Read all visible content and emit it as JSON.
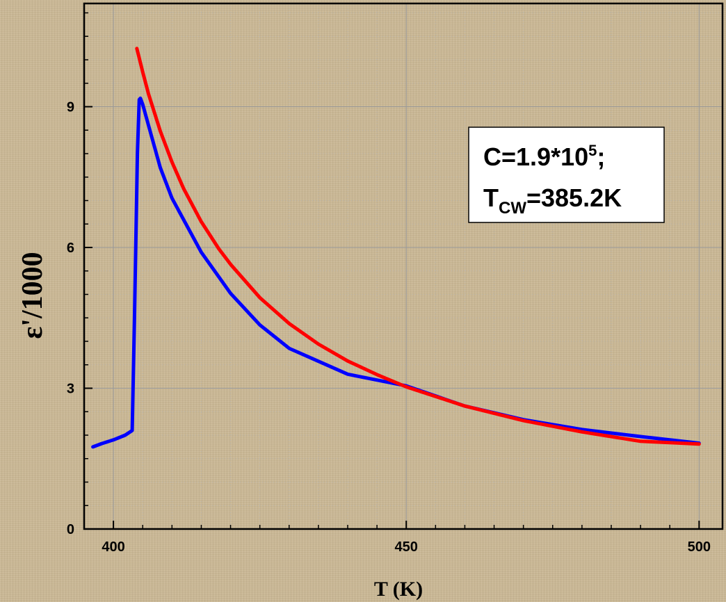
{
  "chart_data": {
    "type": "line",
    "xlabel": "T (K)",
    "ylabel": "ε'/1000",
    "xlim": [
      395,
      504
    ],
    "ylim": [
      0,
      11.2
    ],
    "x_ticks": [
      "400",
      "450",
      "500"
    ],
    "y_ticks": [
      "0",
      "3",
      "6",
      "9"
    ],
    "grid": true,
    "annotation": {
      "line1_main": "C=1.9*10",
      "line1_sup": "5",
      "line1_end": ";",
      "line2_main": "T",
      "line2_sub": "CW",
      "line2_end": "=385.2K",
      "position": "upper-right"
    },
    "series": [
      {
        "color": "#0000ff",
        "x": [
          396.5,
          398,
          400,
          402,
          403.2,
          403.6,
          404.1,
          404.4,
          404.6,
          405,
          406,
          408,
          410,
          415,
          420,
          425,
          430,
          440,
          450,
          460,
          470,
          480,
          490,
          500
        ],
        "y": [
          1.75,
          1.82,
          1.9,
          2.0,
          2.1,
          4.5,
          8.0,
          9.15,
          9.18,
          9.05,
          8.6,
          7.7,
          7.05,
          5.9,
          5.02,
          4.35,
          3.85,
          3.3,
          3.05,
          2.62,
          2.33,
          2.12,
          1.97,
          1.83
        ]
      },
      {
        "color": "#ff0000",
        "x": [
          404,
          405,
          406,
          408,
          410,
          412,
          415,
          418,
          420,
          425,
          430,
          435,
          440,
          445,
          450,
          460,
          470,
          480,
          490,
          500
        ],
        "y": [
          10.24,
          9.74,
          9.27,
          8.48,
          7.82,
          7.25,
          6.55,
          5.97,
          5.64,
          4.93,
          4.38,
          3.94,
          3.58,
          3.29,
          3.03,
          2.62,
          2.31,
          2.07,
          1.87,
          1.81
        ]
      }
    ]
  }
}
